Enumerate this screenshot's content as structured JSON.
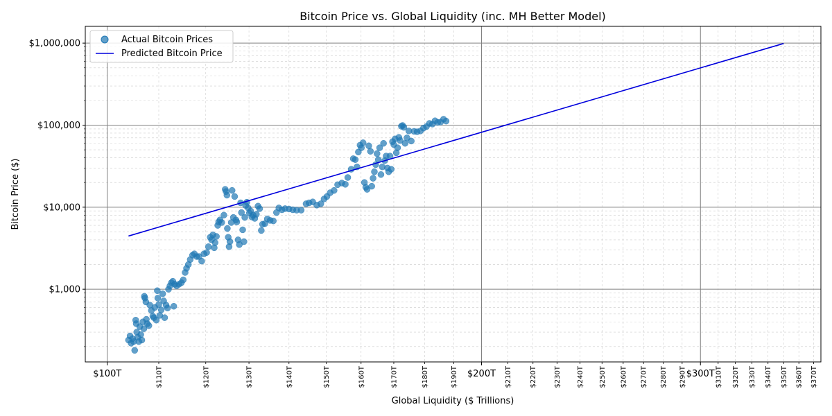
{
  "chart_data": {
    "type": "scatter",
    "title": "Bitcoin Price vs. Global Liquidity (inc. MH Better Model)",
    "xlabel": "Global Liquidity ($ Trillions)",
    "ylabel": "Bitcoin Price ($)",
    "x_scale": "log",
    "y_scale": "log",
    "xlim": [
      96,
      375
    ],
    "ylim": [
      130,
      1600000
    ],
    "grid": true,
    "legend_position": "top-left",
    "x_major_ticks": [
      {
        "value": 100,
        "label": "$100T"
      },
      {
        "value": 200,
        "label": "$200T"
      },
      {
        "value": 300,
        "label": "$300T"
      }
    ],
    "x_minor_ticks": [
      {
        "value": 110,
        "label": "$110T"
      },
      {
        "value": 120,
        "label": "$120T"
      },
      {
        "value": 130,
        "label": "$130T"
      },
      {
        "value": 140,
        "label": "$140T"
      },
      {
        "value": 150,
        "label": "$150T"
      },
      {
        "value": 160,
        "label": "$160T"
      },
      {
        "value": 170,
        "label": "$170T"
      },
      {
        "value": 180,
        "label": "$180T"
      },
      {
        "value": 190,
        "label": "$190T"
      },
      {
        "value": 210,
        "label": "$210T"
      },
      {
        "value": 220,
        "label": "$220T"
      },
      {
        "value": 230,
        "label": "$230T"
      },
      {
        "value": 240,
        "label": "$240T"
      },
      {
        "value": 250,
        "label": "$250T"
      },
      {
        "value": 260,
        "label": "$260T"
      },
      {
        "value": 270,
        "label": "$270T"
      },
      {
        "value": 280,
        "label": "$280T"
      },
      {
        "value": 290,
        "label": "$290T"
      },
      {
        "value": 310,
        "label": "$310T"
      },
      {
        "value": 320,
        "label": "$320T"
      },
      {
        "value": 330,
        "label": "$330T"
      },
      {
        "value": 340,
        "label": "$340T"
      },
      {
        "value": 350,
        "label": "$350T"
      },
      {
        "value": 360,
        "label": "$360T"
      },
      {
        "value": 370,
        "label": "$370T"
      }
    ],
    "y_major_ticks": [
      {
        "value": 1000,
        "label": "$1,000"
      },
      {
        "value": 10000,
        "label": "$10,000"
      },
      {
        "value": 100000,
        "label": "$100,000"
      },
      {
        "value": 1000000,
        "label": "$1,000,000"
      }
    ],
    "series": [
      {
        "name": "Actual Bitcoin Prices",
        "kind": "scatter",
        "color": "#1f77b4",
        "points": [
          [
            104,
            240
          ],
          [
            104.3,
            270
          ],
          [
            104.5,
            220
          ],
          [
            104.8,
            250
          ],
          [
            105,
            230
          ],
          [
            105.2,
            180
          ],
          [
            105.4,
            420
          ],
          [
            105.5,
            380
          ],
          [
            105.6,
            300
          ],
          [
            105.8,
            260
          ],
          [
            106,
            230
          ],
          [
            106.2,
            350
          ],
          [
            106.4,
            280
          ],
          [
            106.6,
            240
          ],
          [
            106.8,
            400
          ],
          [
            107,
            330
          ],
          [
            107.1,
            820
          ],
          [
            107.2,
            780
          ],
          [
            107.4,
            700
          ],
          [
            107.5,
            430
          ],
          [
            107.7,
            380
          ],
          [
            108,
            360
          ],
          [
            108.2,
            640
          ],
          [
            108.5,
            550
          ],
          [
            108.8,
            470
          ],
          [
            109,
            450
          ],
          [
            109.2,
            600
          ],
          [
            109.5,
            420
          ],
          [
            109.7,
            960
          ],
          [
            109.8,
            780
          ],
          [
            110,
            650
          ],
          [
            110.2,
            480
          ],
          [
            110.5,
            560
          ],
          [
            110.8,
            880
          ],
          [
            111,
            720
          ],
          [
            111.2,
            450
          ],
          [
            111.5,
            640
          ],
          [
            111.8,
            590
          ],
          [
            112,
            1000
          ],
          [
            112.3,
            1100
          ],
          [
            112.6,
            1200
          ],
          [
            112.9,
            1250
          ],
          [
            113.1,
            620
          ],
          [
            113.3,
            1150
          ],
          [
            113.7,
            1100
          ],
          [
            114.2,
            1150
          ],
          [
            114.7,
            1200
          ],
          [
            115.1,
            1300
          ],
          [
            115.5,
            1600
          ],
          [
            115.8,
            1800
          ],
          [
            116.2,
            2000
          ],
          [
            116.6,
            2300
          ],
          [
            117.1,
            2600
          ],
          [
            117.5,
            2700
          ],
          [
            118,
            2500
          ],
          [
            118.5,
            2500
          ],
          [
            119.1,
            2200
          ],
          [
            119.6,
            2700
          ],
          [
            120.2,
            2800
          ],
          [
            120.6,
            3300
          ],
          [
            121,
            4300
          ],
          [
            121.3,
            4000
          ],
          [
            121.6,
            4600
          ],
          [
            121.9,
            3200
          ],
          [
            122.1,
            3700
          ],
          [
            122.4,
            4400
          ],
          [
            122.7,
            6000
          ],
          [
            122.9,
            6600
          ],
          [
            123.2,
            7000
          ],
          [
            123.6,
            6500
          ],
          [
            124.1,
            8000
          ],
          [
            124.4,
            16500
          ],
          [
            124.6,
            15500
          ],
          [
            124.8,
            14000
          ],
          [
            124.9,
            5500
          ],
          [
            125.1,
            4300
          ],
          [
            125.3,
            3300
          ],
          [
            125.5,
            3800
          ],
          [
            125.8,
            6500
          ],
          [
            126,
            16000
          ],
          [
            126.3,
            7500
          ],
          [
            126.6,
            13500
          ],
          [
            126.9,
            7000
          ],
          [
            127.1,
            6600
          ],
          [
            127.4,
            4000
          ],
          [
            127.7,
            3500
          ],
          [
            128,
            11300
          ],
          [
            128.2,
            8600
          ],
          [
            128.5,
            5300
          ],
          [
            128.8,
            3800
          ],
          [
            129,
            7500
          ],
          [
            129.2,
            10500
          ],
          [
            129.5,
            11500
          ],
          [
            129.8,
            9800
          ],
          [
            130.1,
            8500
          ],
          [
            130.4,
            9000
          ],
          [
            130.7,
            7600
          ],
          [
            131,
            8000
          ],
          [
            131.4,
            7300
          ],
          [
            131.8,
            8200
          ],
          [
            132.2,
            10300
          ],
          [
            132.6,
            9600
          ],
          [
            133,
            5200
          ],
          [
            133.3,
            6200
          ],
          [
            133.9,
            6300
          ],
          [
            134.5,
            7200
          ],
          [
            135.2,
            6900
          ],
          [
            136,
            6800
          ],
          [
            136.8,
            8600
          ],
          [
            137.4,
            9800
          ],
          [
            138.2,
            9300
          ],
          [
            139,
            9600
          ],
          [
            140,
            9500
          ],
          [
            141,
            9300
          ],
          [
            142,
            9200
          ],
          [
            143.2,
            9200
          ],
          [
            144.5,
            11000
          ],
          [
            145.3,
            11300
          ],
          [
            146.3,
            11600
          ],
          [
            147.4,
            10600
          ],
          [
            148.5,
            11000
          ],
          [
            149.4,
            12600
          ],
          [
            150.2,
            13500
          ],
          [
            151.1,
            15000
          ],
          [
            152.2,
            16000
          ],
          [
            153.2,
            18800
          ],
          [
            154.4,
            19700
          ],
          [
            155.4,
            19000
          ],
          [
            156.1,
            23000
          ],
          [
            157.1,
            29000
          ],
          [
            157.7,
            39000
          ],
          [
            158.3,
            38000
          ],
          [
            158.8,
            31000
          ],
          [
            159.2,
            47000
          ],
          [
            159.7,
            57000
          ],
          [
            160.1,
            53000
          ],
          [
            160.6,
            61000
          ],
          [
            161,
            20000
          ],
          [
            161.4,
            17500
          ],
          [
            161.8,
            16500
          ],
          [
            162.3,
            56000
          ],
          [
            162.8,
            48000
          ],
          [
            163.2,
            18000
          ],
          [
            163.6,
            22500
          ],
          [
            164,
            27000
          ],
          [
            164.4,
            33000
          ],
          [
            164.8,
            45000
          ],
          [
            165.2,
            38000
          ],
          [
            165.6,
            53000
          ],
          [
            166,
            25000
          ],
          [
            166.4,
            31000
          ],
          [
            166.8,
            60000
          ],
          [
            167.2,
            37000
          ],
          [
            167.6,
            42000
          ],
          [
            168,
            30000
          ],
          [
            168.4,
            27000
          ],
          [
            168.8,
            42000
          ],
          [
            169.2,
            29000
          ],
          [
            169.6,
            63000
          ],
          [
            170,
            58000
          ],
          [
            170.4,
            68000
          ],
          [
            170.8,
            46000
          ],
          [
            171.2,
            53000
          ],
          [
            171.6,
            71000
          ],
          [
            172,
            65000
          ],
          [
            172.4,
            97000
          ],
          [
            172.8,
            99000
          ],
          [
            173.2,
            94000
          ],
          [
            173.6,
            60000
          ],
          [
            174.2,
            70000
          ],
          [
            174.8,
            85000
          ],
          [
            175.6,
            64000
          ],
          [
            176.5,
            84000
          ],
          [
            177.5,
            83000
          ],
          [
            178.6,
            85000
          ],
          [
            179.6,
            92000
          ],
          [
            180.6,
            96000
          ],
          [
            181.6,
            105000
          ],
          [
            182.6,
            103000
          ],
          [
            183.5,
            113000
          ],
          [
            184.4,
            108000
          ],
          [
            185.4,
            109000
          ],
          [
            186.4,
            118000
          ],
          [
            187.3,
            112000
          ]
        ]
      },
      {
        "name": "Predicted Bitcoin Price",
        "kind": "line",
        "color": "#0000dd",
        "points": [
          [
            104,
            4450
          ],
          [
            350,
            990000
          ]
        ]
      }
    ]
  }
}
